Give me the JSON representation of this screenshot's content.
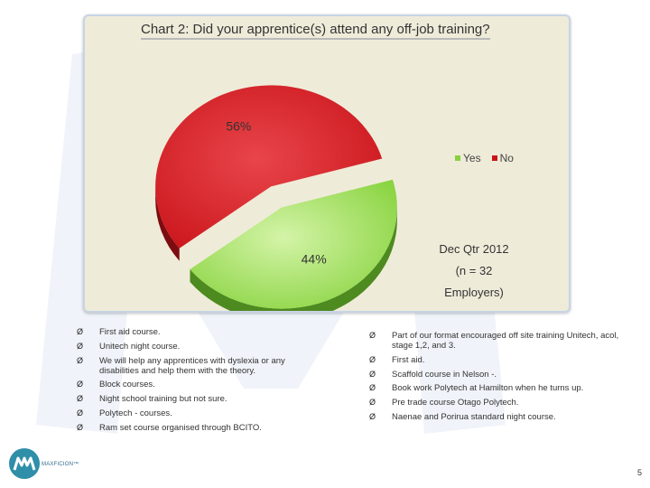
{
  "chart_data": {
    "type": "pie",
    "title": "Chart 2: Did your apprentice(s) attend any off-job training?",
    "categories": [
      "Yes",
      "No"
    ],
    "values": [
      44,
      56
    ],
    "labels": [
      "44%",
      "56%"
    ],
    "colors": [
      "#86d23c",
      "#c9141a"
    ],
    "legend": {
      "position": "right",
      "entries": [
        "Yes",
        "No"
      ]
    },
    "annotations": [
      "Dec Qtr 2012",
      "(n = 32 Employers)"
    ],
    "exploded": true,
    "style": "3d"
  },
  "left_bullets": [
    "First aid course.",
    "Unitech night course.",
    "We will help any apprentices with dyslexia or any disabilities and help them with the theory.",
    "Block courses.",
    "Night school training but not sure.",
    "Polytech - courses.",
    "Ram set course organised through BCITO."
  ],
  "right_bullets": [
    "Part of our format encouraged off site training Unitech, acol, stage 1,2, and 3.",
    "First aid.",
    "Scaffold course in Nelson -.",
    "Book work Polytech at Hamilton when he turns up.",
    "Pre trade course Otago Polytech.",
    "Naenae and Porirua standard night course."
  ],
  "bullet_glyph": "Ø",
  "logo": {
    "text": "MAXFICION™",
    "icon": "mm-logo-icon",
    "color": "#2f8fa8"
  },
  "page_number": "5"
}
